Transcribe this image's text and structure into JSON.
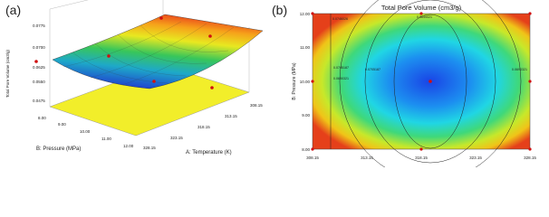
{
  "panels": [
    {
      "label": "(a)",
      "z_axis_title": "Total Pore Volume (cm3/g)",
      "z_ticks": [
        "0.0775",
        "0.0700",
        "0.0625",
        "0.0550",
        "0.0475"
      ],
      "pressure_title": "B: Pressure (MPa)",
      "pressure_ticks": [
        "8.00",
        "9.00",
        "10.00",
        "11.00",
        "12.00"
      ],
      "temperature_title": "A: Temperature (K)",
      "temperature_ticks": [
        "308.15",
        "313.15",
        "318.15",
        "323.15",
        "328.15"
      ]
    },
    {
      "label": "(b)",
      "title": "Total Pore Volume (cm3/g)",
      "y_axis_title": "B: Pressure (MPa)",
      "y_ticks": [
        "12.00",
        "11.00",
        "10.00",
        "9.00",
        "8.00"
      ],
      "x_ticks": [
        "308.15",
        "313.15",
        "318.15",
        "323.15",
        "328.15"
      ],
      "contour_labels": [
        "0.0746026",
        "0.0649021",
        "0.0705187",
        "0.0690321",
        "0.0705187",
        "0.0690321"
      ]
    }
  ]
}
